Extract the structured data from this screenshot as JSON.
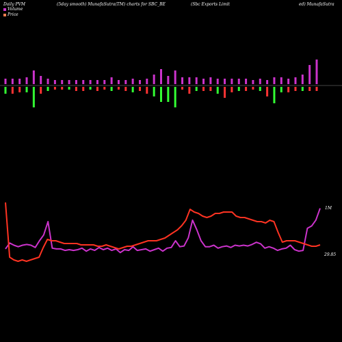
{
  "header": {
    "left": "Daily PVM",
    "center1": "(5day smooth) MunafaSutra(TM) charts for SBC_BE",
    "center2": "(Sbc Exports Limit",
    "right": "ed) MunafaSutra"
  },
  "legend": {
    "volume_label": "Volume",
    "price_label": "Price",
    "volume_color": "#cc33cc",
    "price_color": "#ff7f50"
  },
  "chart_data": [
    {
      "type": "bar",
      "name": "pvm",
      "baseline_gap": 5,
      "values": [
        8,
        -10,
        8,
        -10,
        8,
        -8,
        10,
        -8,
        20,
        -30,
        12,
        -10,
        8,
        -6,
        6,
        -4,
        6,
        -4,
        6,
        -4,
        6,
        -6,
        6,
        -6,
        6,
        -4,
        6,
        -6,
        6,
        -4,
        10,
        -6,
        6,
        -4,
        6,
        -6,
        8,
        -8,
        6,
        -6,
        8,
        -10,
        14,
        -14,
        22,
        -22,
        12,
        -22,
        20,
        -30,
        10,
        -4,
        10,
        -10,
        10,
        -6,
        8,
        -6,
        10,
        -6,
        8,
        -10,
        8,
        -16,
        8,
        -8,
        8,
        -6,
        8,
        -6,
        6,
        -4,
        8,
        -6,
        6,
        -14,
        10,
        -24,
        10,
        -8,
        8,
        -8,
        10,
        -6,
        14,
        -6,
        28,
        -6,
        36,
        -6
      ],
      "colors": {
        "up": "#cc33cc",
        "down_small": "#ff3333",
        "down_large": "#33ff33"
      }
    },
    {
      "type": "line",
      "name": "volume",
      "color": "#cc33cc",
      "values": [
        10.4,
        13.6,
        12.4,
        11.6,
        12.4,
        12.8,
        12.4,
        11.2,
        14.8,
        18,
        25.2,
        10.8,
        10.4,
        10.4,
        9.6,
        10,
        9.6,
        10,
        10.8,
        9.2,
        10.4,
        9.6,
        11.2,
        10,
        10.8,
        9.6,
        10.4,
        8.4,
        10,
        9.6,
        11.6,
        9.6,
        10,
        10.4,
        9.2,
        10,
        10.8,
        9.2,
        10.8,
        11.2,
        14.8,
        11.6,
        12,
        16.4,
        26,
        20.8,
        14.8,
        11.6,
        11.6,
        12.4,
        10.8,
        11.6,
        12,
        11.2,
        12.4,
        12,
        12.4,
        12,
        12.8,
        14,
        13.2,
        10.8,
        11.6,
        10.8,
        9.6,
        10.4,
        10.8,
        12.4,
        10,
        9.2,
        9.6,
        21.6,
        22.8,
        26,
        32.4
      ],
      "label": "1M"
    },
    {
      "type": "line",
      "name": "price",
      "color": "#ff3322",
      "values": [
        30.4,
        30.0,
        29.98,
        29.97,
        29.98,
        29.97,
        29.98,
        29.99,
        30.0,
        30.07,
        30.13,
        30.12,
        30.12,
        30.11,
        30.1,
        30.1,
        30.1,
        30.1,
        30.09,
        30.09,
        30.09,
        30.09,
        30.08,
        30.08,
        30.09,
        30.08,
        30.07,
        30.06,
        30.07,
        30.08,
        30.08,
        30.09,
        30.1,
        30.11,
        30.12,
        30.12,
        30.12,
        30.13,
        30.14,
        30.16,
        30.18,
        30.2,
        30.23,
        30.27,
        30.35,
        30.33,
        30.32,
        30.3,
        30.29,
        30.3,
        30.32,
        30.32,
        30.33,
        30.33,
        30.33,
        30.3,
        30.29,
        30.29,
        30.28,
        30.27,
        30.26,
        30.26,
        30.25,
        30.27,
        30.26,
        30.18,
        30.11,
        30.12,
        30.12,
        30.12,
        30.11,
        30.1,
        30.09,
        30.08,
        30.08,
        30.09
      ],
      "label": "29.85"
    }
  ]
}
